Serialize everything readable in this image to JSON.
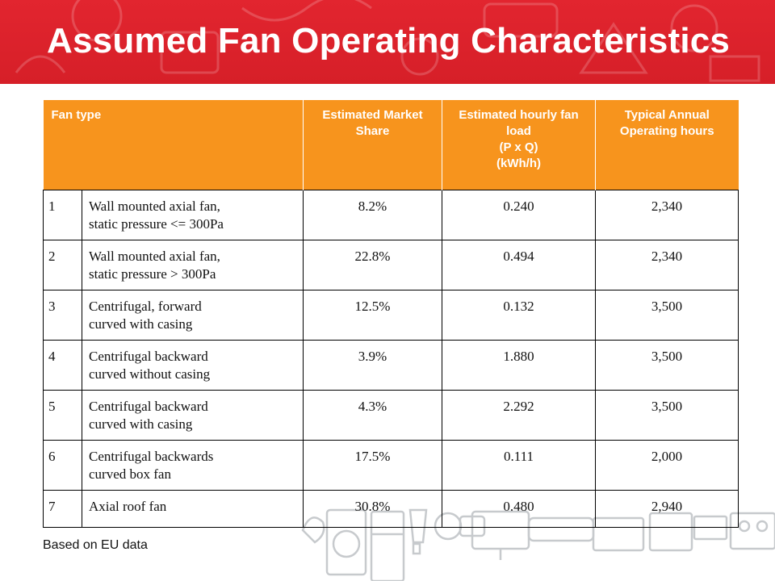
{
  "slide": {
    "title": "Assumed Fan Operating Characteristics",
    "footnote": "Based on EU data"
  },
  "table": {
    "headers": {
      "fan_type": "Fan type",
      "market_share": "Estimated Market Share",
      "fan_load_line1": "Estimated hourly fan load",
      "fan_load_line2": "(P x Q)",
      "fan_load_line3": "(kWh/h)",
      "operating_hours": "Typical Annual Operating hours"
    },
    "rows": [
      {
        "num": "1",
        "type_line1": "Wall mounted axial fan,",
        "type_line2": "static pressure <= 300Pa",
        "share": "8.2%",
        "load": "0.240",
        "hours": "2,340"
      },
      {
        "num": "2",
        "type_line1": "Wall mounted axial fan,",
        "type_line2": "static pressure > 300Pa",
        "share": "22.8%",
        "load": "0.494",
        "hours": "2,340"
      },
      {
        "num": "3",
        "type_line1": "Centrifugal, forward",
        "type_line2": "curved with casing",
        "share": "12.5%",
        "load": "0.132",
        "hours": "3,500"
      },
      {
        "num": "4",
        "type_line1": "Centrifugal backward",
        "type_line2": "curved without casing",
        "share": "3.9%",
        "load": "1.880",
        "hours": "3,500"
      },
      {
        "num": "5",
        "type_line1": "Centrifugal backward",
        "type_line2": "curved with casing",
        "share": "4.3%",
        "load": "2.292",
        "hours": "3,500"
      },
      {
        "num": "6",
        "type_line1": "Centrifugal backwards",
        "type_line2": "curved box fan",
        "share": "17.5%",
        "load": "0.111",
        "hours": "2,000"
      },
      {
        "num": "7",
        "type_line1": "Axial roof fan",
        "type_line2": "",
        "share": "30.8%",
        "load": "0.480",
        "hours": "2,940"
      }
    ]
  },
  "colors": {
    "banner": "#d61f28",
    "header": "#f7941d"
  },
  "decorations": {
    "banner_pattern": "appliance-outline-pattern",
    "footer_art": "appliance-outline-icons"
  }
}
